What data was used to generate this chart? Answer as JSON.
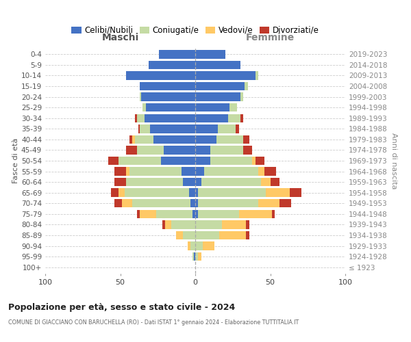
{
  "age_groups": [
    "100+",
    "95-99",
    "90-94",
    "85-89",
    "80-84",
    "75-79",
    "70-74",
    "65-69",
    "60-64",
    "55-59",
    "50-54",
    "45-49",
    "40-44",
    "35-39",
    "30-34",
    "25-29",
    "20-24",
    "15-19",
    "10-14",
    "5-9",
    "0-4"
  ],
  "birth_years": [
    "≤ 1923",
    "1924-1928",
    "1929-1933",
    "1934-1938",
    "1939-1943",
    "1944-1948",
    "1949-1953",
    "1954-1958",
    "1959-1963",
    "1964-1968",
    "1969-1973",
    "1974-1978",
    "1979-1983",
    "1984-1988",
    "1989-1993",
    "1994-1998",
    "1999-2003",
    "2004-2008",
    "2009-2013",
    "2014-2018",
    "2019-2023"
  ],
  "male": {
    "celibi": [
      0,
      1,
      0,
      0,
      0,
      2,
      3,
      4,
      8,
      9,
      23,
      21,
      28,
      30,
      34,
      33,
      36,
      37,
      46,
      31,
      24
    ],
    "coniugati": [
      0,
      1,
      3,
      8,
      16,
      24,
      39,
      43,
      38,
      35,
      28,
      18,
      12,
      7,
      5,
      2,
      1,
      0,
      0,
      0,
      0
    ],
    "vedovi": [
      0,
      0,
      2,
      5,
      4,
      11,
      7,
      4,
      0,
      2,
      0,
      0,
      2,
      0,
      0,
      0,
      0,
      0,
      0,
      0,
      0
    ],
    "divorziati": [
      0,
      0,
      0,
      0,
      2,
      2,
      5,
      5,
      8,
      8,
      7,
      7,
      2,
      1,
      1,
      0,
      0,
      0,
      0,
      0,
      0
    ]
  },
  "female": {
    "nubili": [
      0,
      0,
      0,
      0,
      0,
      2,
      2,
      2,
      4,
      6,
      10,
      10,
      14,
      15,
      22,
      23,
      30,
      33,
      40,
      30,
      20
    ],
    "coniugate": [
      0,
      2,
      5,
      16,
      18,
      27,
      40,
      45,
      40,
      36,
      28,
      22,
      18,
      12,
      8,
      5,
      2,
      2,
      2,
      0,
      0
    ],
    "vedove": [
      0,
      2,
      8,
      18,
      16,
      22,
      14,
      16,
      6,
      4,
      2,
      0,
      0,
      0,
      0,
      0,
      0,
      0,
      0,
      0,
      0
    ],
    "divorziate": [
      0,
      0,
      0,
      2,
      2,
      2,
      8,
      8,
      6,
      8,
      6,
      6,
      4,
      2,
      2,
      0,
      0,
      0,
      0,
      0,
      0
    ]
  },
  "colors": {
    "celibi": "#4472C4",
    "coniugati": "#c5dba4",
    "vedovi": "#ffc966",
    "divorziati": "#c0392b"
  },
  "xlim": 100,
  "title": "Popolazione per età, sesso e stato civile - 2024",
  "subtitle": "COMUNE DI GIACCIANO CON BARUCHELLA (RO) - Dati ISTAT 1° gennaio 2024 - Elaborazione TUTTITALIA.IT",
  "ylabel": "Fasce di età",
  "ylabel2": "Anni di nascita",
  "legend_labels": [
    "Celibi/Nubili",
    "Coniugati/e",
    "Vedovi/e",
    "Divorziati/e"
  ],
  "maschi_label": "Maschi",
  "femmine_label": "Femmine",
  "bg_color": "#ffffff",
  "grid_color": "#cccccc"
}
